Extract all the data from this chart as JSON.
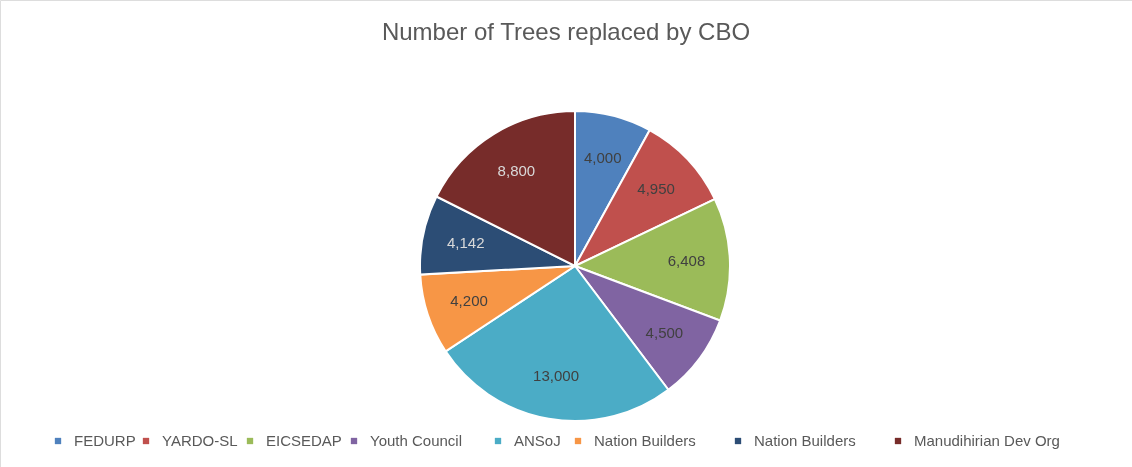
{
  "chart_data": {
    "type": "pie",
    "title": "Number of Trees replaced by CBO",
    "categories": [
      "FEDURP",
      "YARDO-SL",
      "EICSEDAP",
      "Youth Council",
      "ANSoJ",
      "Nation Builders",
      "Nation Builders",
      "Manudihirian Dev Org"
    ],
    "values": [
      4000,
      4950,
      6408,
      4500,
      13000,
      4200,
      4142,
      8800
    ],
    "colors": [
      "#4f81bd",
      "#c0504d",
      "#9bbb59",
      "#8064a2",
      "#4bacc6",
      "#f79646",
      "#2c4d75",
      "#772c2a"
    ],
    "value_labels": [
      "4,000",
      "4,950",
      "6,408",
      "4,500",
      "13,000",
      "4,200",
      "4,142",
      "8,800"
    ],
    "legend": "bottom"
  }
}
